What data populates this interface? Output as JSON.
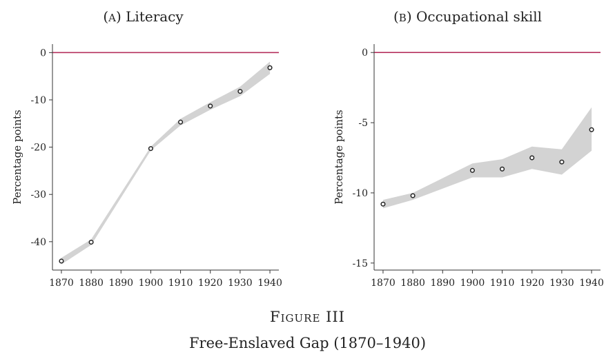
{
  "figure": {
    "label": "Figure III",
    "caption": "Free-Enslaved Gap (1870–1940)"
  },
  "chart_data": [
    {
      "type": "line",
      "panel_letter": "A",
      "title": "Literacy",
      "ylabel": "Percentage points",
      "xlabel": "",
      "x": [
        1870,
        1880,
        1900,
        1910,
        1920,
        1930,
        1940
      ],
      "values": [
        -44.1,
        -40.1,
        -20.3,
        -14.7,
        -11.3,
        -8.2,
        -3.2
      ],
      "ci_low": [
        -44.8,
        -40.7,
        -20.7,
        -15.4,
        -12.1,
        -9.2,
        -4.5
      ],
      "ci_high": [
        -43.4,
        -39.5,
        -19.9,
        -14.0,
        -10.5,
        -7.2,
        -1.9
      ],
      "xticks": [
        1870,
        1880,
        1890,
        1900,
        1910,
        1920,
        1930,
        1940
      ],
      "yticks": [
        0,
        -10,
        -20,
        -30,
        -40
      ],
      "xlim": [
        1867,
        1943
      ],
      "ylim": [
        -46,
        1.8
      ],
      "reference_line": 0,
      "colors": {
        "reference": "#b5305d",
        "band": "#d3d3d3",
        "marker": "#222222"
      }
    },
    {
      "type": "line",
      "panel_letter": "B",
      "title": "Occupational skill",
      "ylabel": "Percentage points",
      "xlabel": "",
      "x": [
        1870,
        1880,
        1900,
        1910,
        1920,
        1930,
        1940
      ],
      "values": [
        -10.8,
        -10.2,
        -8.4,
        -8.3,
        -7.5,
        -7.8,
        -5.5
      ],
      "ci_low": [
        -11.1,
        -10.5,
        -8.9,
        -8.9,
        -8.3,
        -8.7,
        -7.0
      ],
      "ci_high": [
        -10.5,
        -10.0,
        -7.9,
        -7.6,
        -6.7,
        -6.9,
        -3.9
      ],
      "xticks": [
        1870,
        1880,
        1890,
        1900,
        1910,
        1920,
        1930,
        1940
      ],
      "yticks": [
        0,
        -5,
        -10,
        -15
      ],
      "xlim": [
        1867,
        1943
      ],
      "ylim": [
        -15.5,
        0.6
      ],
      "reference_line": 0,
      "colors": {
        "reference": "#b5305d",
        "band": "#d3d3d3",
        "marker": "#222222"
      }
    }
  ]
}
